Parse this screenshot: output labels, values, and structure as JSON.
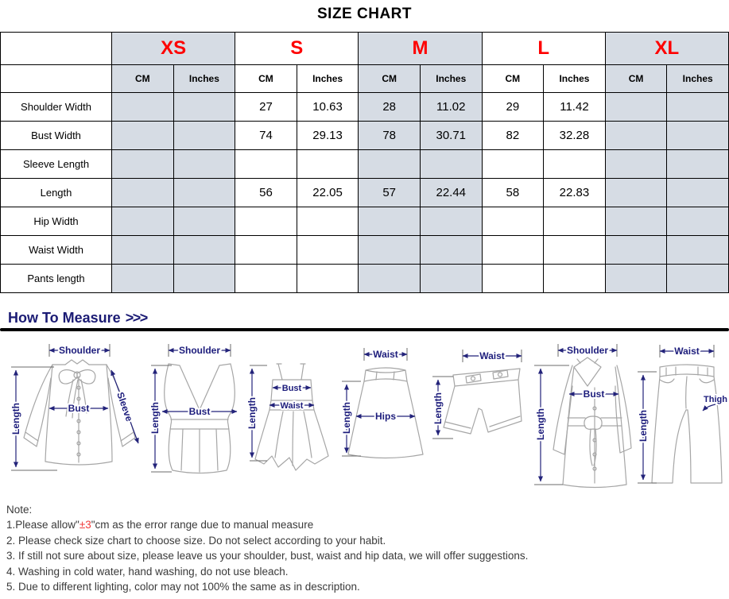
{
  "title": "SIZE CHART",
  "table": {
    "sizes": [
      {
        "label": "XS",
        "shaded": true
      },
      {
        "label": "S",
        "shaded": false
      },
      {
        "label": "M",
        "shaded": true
      },
      {
        "label": "L",
        "shaded": false
      },
      {
        "label": "XL",
        "shaded": true
      }
    ],
    "unit_headers": [
      "CM",
      "Inches"
    ],
    "rows": [
      {
        "label": "Shoulder Width",
        "values": [
          "",
          "",
          "27",
          "10.63",
          "28",
          "11.02",
          "29",
          "11.42",
          "",
          ""
        ]
      },
      {
        "label": "Bust Width",
        "values": [
          "",
          "",
          "74",
          "29.13",
          "78",
          "30.71",
          "82",
          "32.28",
          "",
          ""
        ]
      },
      {
        "label": "Sleeve Length",
        "values": [
          "",
          "",
          "",
          "",
          "",
          "",
          "",
          "",
          "",
          ""
        ]
      },
      {
        "label": "Length",
        "values": [
          "",
          "",
          "56",
          "22.05",
          "57",
          "22.44",
          "58",
          "22.83",
          "",
          ""
        ]
      },
      {
        "label": "Hip Width",
        "values": [
          "",
          "",
          "",
          "",
          "",
          "",
          "",
          "",
          "",
          ""
        ]
      },
      {
        "label": "Waist Width",
        "values": [
          "",
          "",
          "",
          "",
          "",
          "",
          "",
          "",
          "",
          ""
        ]
      },
      {
        "label": "Pants length",
        "values": [
          "",
          "",
          "",
          "",
          "",
          "",
          "",
          "",
          "",
          ""
        ]
      }
    ]
  },
  "measure": {
    "heading": "How To Measure",
    "arrows": ">>>"
  },
  "diagrams": {
    "blouse": {
      "shoulder": "Shoulder",
      "length": "Length",
      "bust": "Bust",
      "sleeve": "Sleeve"
    },
    "vest": {
      "shoulder": "Shoulder",
      "length": "Length",
      "bust": "Bust"
    },
    "dress": {
      "bust": "Bust",
      "waist": "Waist",
      "length": "Length"
    },
    "skirt": {
      "waist": "Waist",
      "length": "Length",
      "hips": "Hips"
    },
    "shorts": {
      "waist": "Waist",
      "length": "Length"
    },
    "coat": {
      "shoulder": "Shoulder",
      "bust": "Bust",
      "length": "Length"
    },
    "pants": {
      "waist": "Waist",
      "length": "Length",
      "thigh": "Thigh"
    }
  },
  "notes": {
    "heading": "Note:",
    "lines": [
      {
        "parts": [
          {
            "t": "1.Please allow\""
          },
          {
            "t": "±3",
            "red": true
          },
          {
            "t": "\"cm as the error range due to manual measure"
          }
        ]
      },
      {
        "parts": [
          {
            "t": "2. Please check size chart to choose size. Do not select according to your habit."
          }
        ]
      },
      {
        "parts": [
          {
            "t": "3. If still not sure about size, please leave us your shoulder, bust, waist and hip data, we will offer suggestions."
          }
        ]
      },
      {
        "parts": [
          {
            "t": "4. Washing in cold water, hand washing, do not use bleach."
          }
        ]
      },
      {
        "parts": [
          {
            "t": "5. Due to different lighting, color may not 100% the same as in description."
          }
        ]
      }
    ]
  },
  "colors": {
    "shaded_cell": "#d6dce4",
    "size_label_red": "#fe0000",
    "navy_accent": "#1b1b74",
    "note_highlight_red": "#f03b3b"
  }
}
